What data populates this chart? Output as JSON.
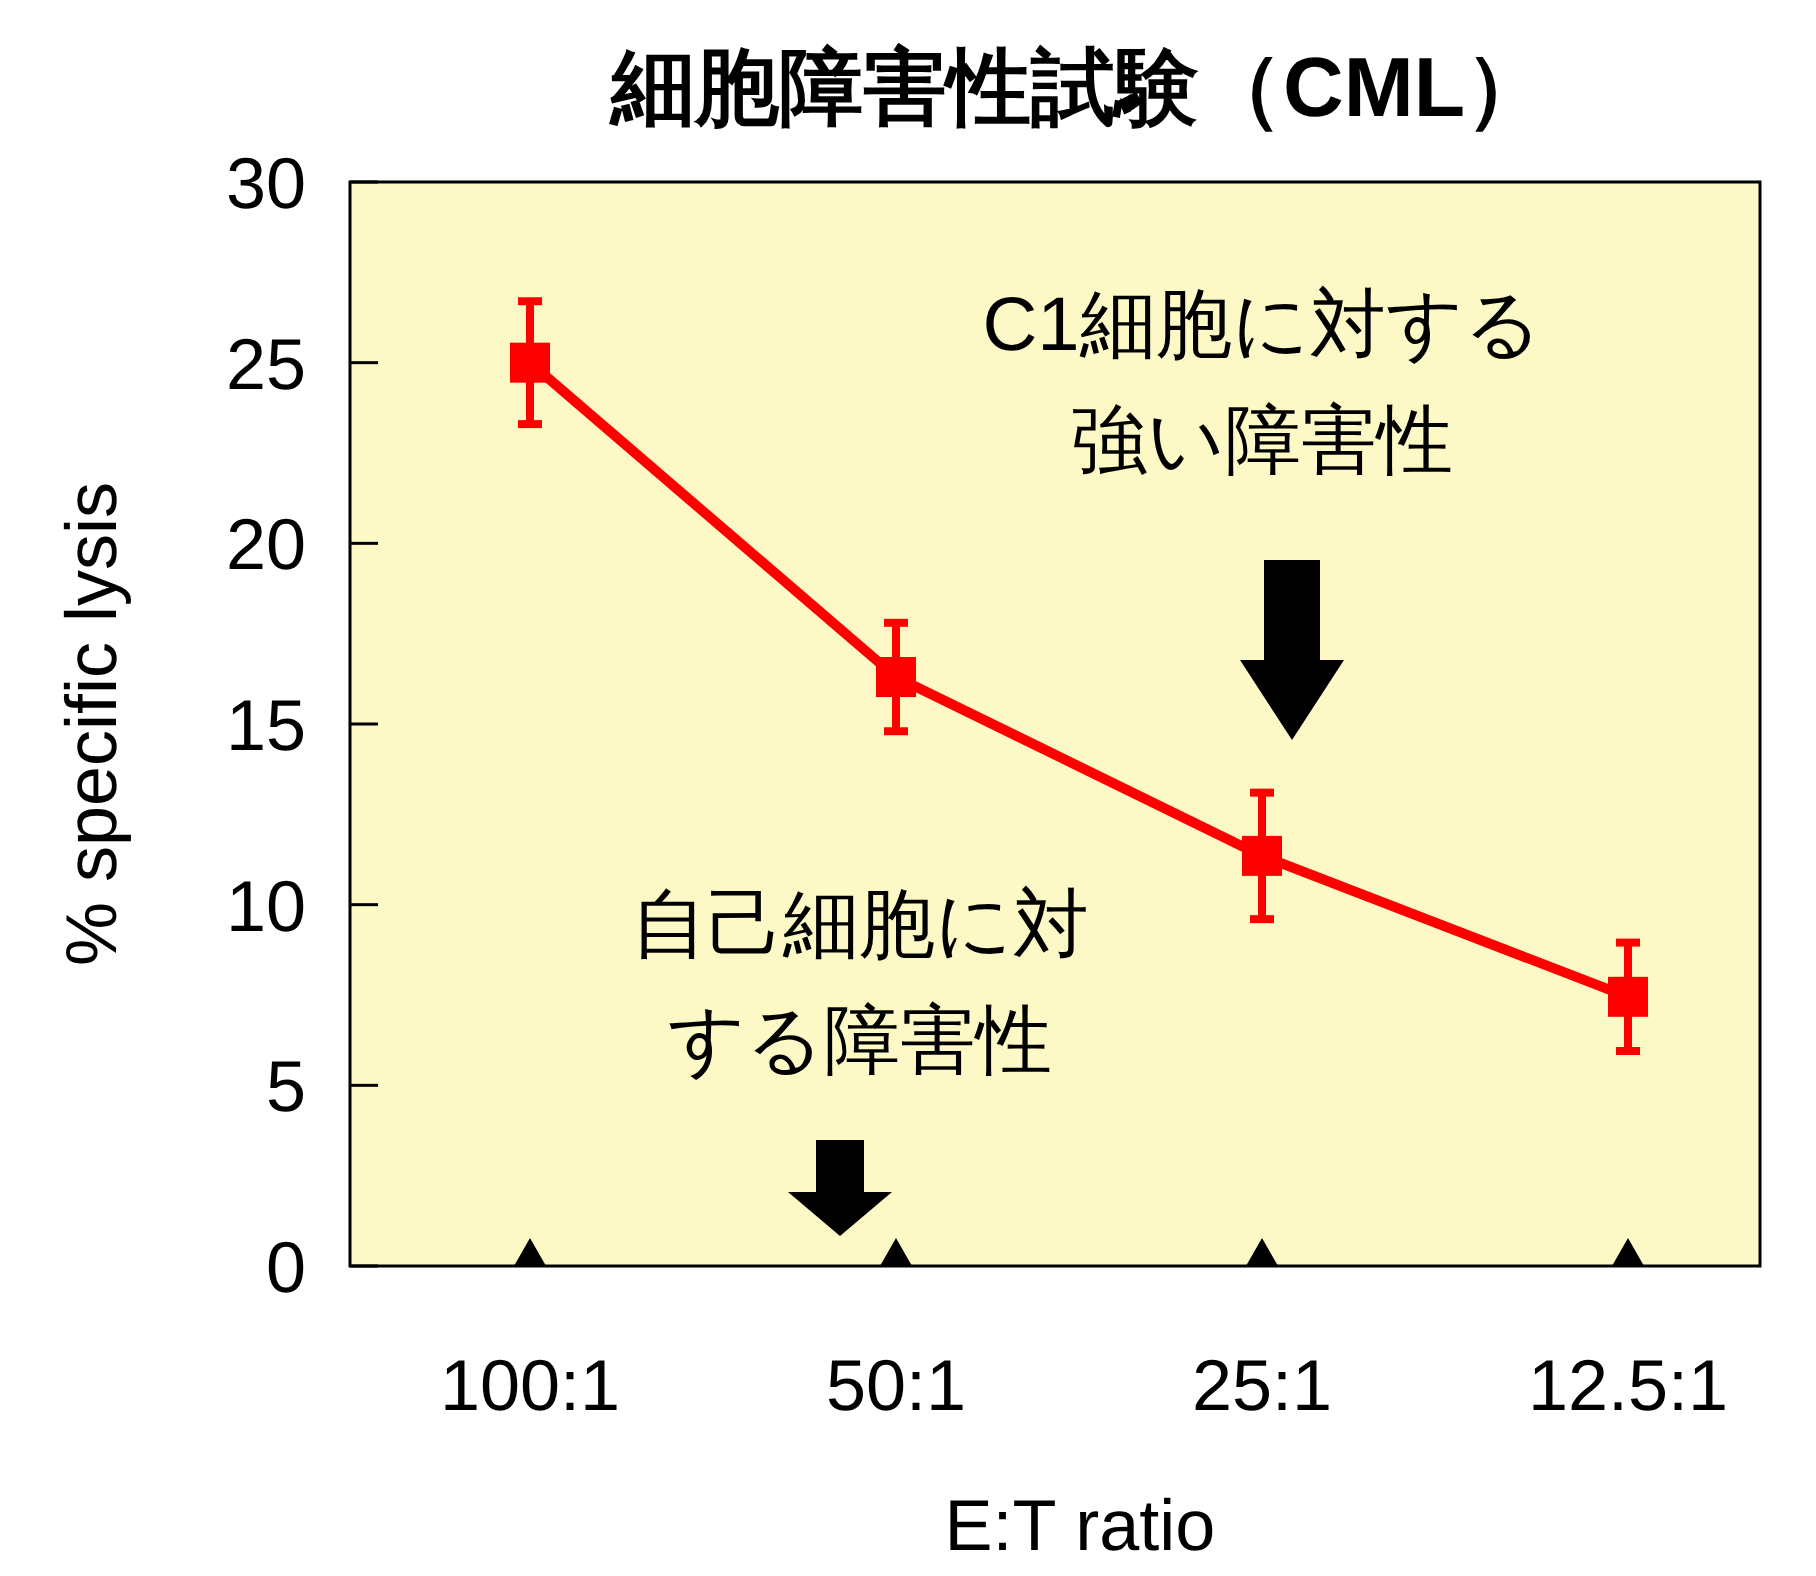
{
  "chart_data": {
    "type": "line",
    "title": "細胞障害性試験（CML）",
    "xlabel": "E:T ratio",
    "ylabel": "% specific lysis",
    "categories": [
      "100:1",
      "50:1",
      "25:1",
      "12.5:1"
    ],
    "series": [
      {
        "color": "#ff0000",
        "values": [
          25,
          16.3,
          11.35,
          7.45
        ],
        "errors": [
          1.7,
          1.5,
          1.75,
          1.5
        ]
      }
    ],
    "ylim": [
      0,
      30
    ],
    "yticks": [
      0,
      5,
      10,
      15,
      20,
      25,
      30
    ],
    "grid": false,
    "marker": "square",
    "line_style": "solid",
    "annotations": [
      "C1細胞に対する",
      "強い障害性",
      "自己細胞に対",
      "する障害性"
    ]
  }
}
